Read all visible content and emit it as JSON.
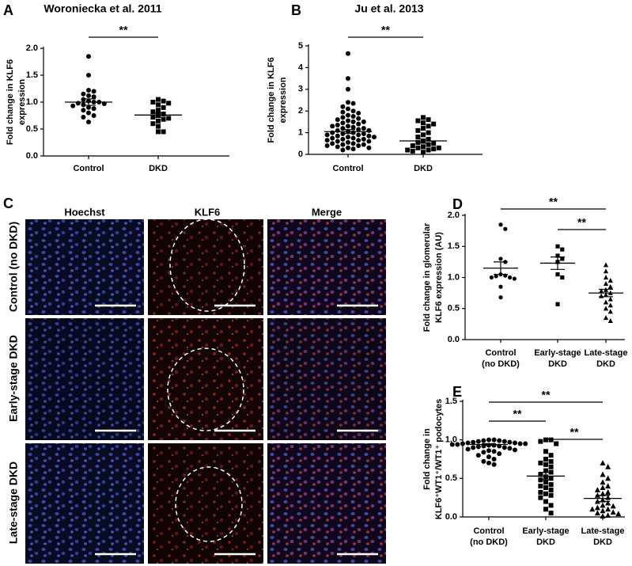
{
  "chart_data": [
    {
      "type": "strip",
      "panel": "A",
      "title": "Woroniecka et al. 2011",
      "y_label": [
        "Fold change in KLF6",
        "expression"
      ],
      "categories": [
        "Control",
        "DKD"
      ],
      "color": "#000000",
      "ylim": [
        0,
        2
      ],
      "yticks": [
        {
          "value": 0,
          "label": "0.0"
        },
        {
          "value": 0.5,
          "label": "0.5"
        },
        {
          "value": 1,
          "label": "1.0"
        },
        {
          "value": 1.5,
          "label": "1.5"
        },
        {
          "value": 2,
          "label": "2.0"
        }
      ],
      "groups": [
        {
          "marker": "circle",
          "mean": 1.0,
          "sem": 0.06,
          "values": [
            1.85,
            1.5,
            1.22,
            1.2,
            1.15,
            1.12,
            1.1,
            1.05,
            1.02,
            1.0,
            1.0,
            0.98,
            0.97,
            0.95,
            0.93,
            0.9,
            0.88,
            0.85,
            0.8,
            0.75,
            0.72,
            0.63
          ]
        },
        {
          "marker": "square",
          "mean": 0.76,
          "sem": 0.04,
          "values": [
            1.05,
            1.02,
            1.0,
            0.98,
            0.95,
            0.9,
            0.85,
            0.82,
            0.78,
            0.75,
            0.72,
            0.7,
            0.68,
            0.65,
            0.6,
            0.55,
            0.45,
            0.45
          ]
        }
      ],
      "annotations": [
        {
          "text": "**",
          "between": [
            "Control",
            "DKD"
          ]
        }
      ]
    },
    {
      "type": "strip",
      "panel": "B",
      "title": "Ju et al. 2013",
      "y_label": [
        "Fold change in KLF6",
        "expression"
      ],
      "categories": [
        "Control",
        "DKD"
      ],
      "color": "#000000",
      "ylim": [
        0,
        5
      ],
      "yticks": [
        0,
        1,
        2,
        3,
        4,
        5
      ],
      "groups": [
        {
          "marker": "circle",
          "mean": 1.05,
          "sem": 0.09,
          "values": [
            4.65,
            3.5,
            3.0,
            2.4,
            2.35,
            2.2,
            2.1,
            2.0,
            1.95,
            1.9,
            1.8,
            1.75,
            1.7,
            1.65,
            1.6,
            1.55,
            1.5,
            1.5,
            1.45,
            1.4,
            1.35,
            1.3,
            1.3,
            1.25,
            1.2,
            1.2,
            1.15,
            1.1,
            1.1,
            1.05,
            1.0,
            1.0,
            0.95,
            0.95,
            0.9,
            0.9,
            0.85,
            0.85,
            0.8,
            0.8,
            0.75,
            0.75,
            0.7,
            0.7,
            0.65,
            0.65,
            0.6,
            0.6,
            0.55,
            0.5,
            0.5,
            0.45,
            0.45,
            0.4,
            0.4,
            0.35,
            0.3,
            0.3,
            0.25,
            0.2
          ]
        },
        {
          "marker": "square",
          "mean": 0.62,
          "sem": 0.09,
          "values": [
            1.7,
            1.6,
            1.55,
            1.45,
            1.4,
            1.3,
            1.2,
            1.1,
            1.0,
            0.9,
            0.8,
            0.7,
            0.6,
            0.55,
            0.5,
            0.45,
            0.4,
            0.35,
            0.3,
            0.3,
            0.25,
            0.2,
            0.2,
            0.15,
            0.1
          ]
        }
      ],
      "annotations": [
        {
          "text": "**",
          "between": [
            "Control",
            "DKD"
          ]
        }
      ]
    },
    {
      "type": "strip",
      "panel": "D",
      "y_label": [
        "Fold change in glomerular",
        "KLF6 expression (AU)"
      ],
      "categories": [
        [
          "Control",
          "(no DKD)"
        ],
        [
          "Early-stage",
          "DKD"
        ],
        [
          "Late-stage",
          "DKD"
        ]
      ],
      "color": "#000000",
      "ylim": [
        0,
        2
      ],
      "yticks": [
        {
          "value": 0,
          "label": "0.0"
        },
        {
          "value": 0.5,
          "label": "0.5"
        },
        {
          "value": 1,
          "label": "1.0"
        },
        {
          "value": 1.5,
          "label": "1.5"
        },
        {
          "value": 2,
          "label": "2.0"
        }
      ],
      "groups": [
        {
          "marker": "circle",
          "mean": 1.15,
          "sem": 0.1,
          "values": [
            1.85,
            1.78,
            1.3,
            1.25,
            1.05,
            1.03,
            1.02,
            1.0,
            1.0,
            0.98,
            0.85,
            0.68
          ]
        },
        {
          "marker": "square",
          "mean": 1.23,
          "sem": 0.1,
          "values": [
            1.5,
            1.45,
            1.35,
            1.3,
            1.25,
            1.05,
            1.0,
            0.57
          ]
        },
        {
          "marker": "triangle",
          "mean": 0.75,
          "sem": 0.06,
          "values": [
            1.2,
            1.1,
            1.0,
            0.95,
            0.9,
            0.85,
            0.8,
            0.78,
            0.75,
            0.72,
            0.7,
            0.65,
            0.6,
            0.55,
            0.5,
            0.45,
            0.35,
            0.3
          ]
        }
      ],
      "annotations": [
        {
          "text": "**",
          "between": [
            [
              "Control",
              "(no DKD)"
            ],
            [
              "Late-stage",
              "DKD"
            ]
          ]
        },
        {
          "text": "**",
          "between": [
            [
              "Early-stage",
              "DKD"
            ],
            [
              "Late-stage",
              "DKD"
            ]
          ]
        }
      ]
    },
    {
      "type": "strip",
      "panel": "E",
      "y_label": [
        "Fold change in",
        "KLF6⁺WT1⁺/WT1⁺ podocytes"
      ],
      "categories": [
        [
          "Control",
          "(no DKD)"
        ],
        [
          "Early-stage",
          "DKD"
        ],
        [
          "Late-stage",
          "DKD"
        ]
      ],
      "color": "#000000",
      "ylim": [
        0,
        1.5
      ],
      "yticks": [
        {
          "value": 0,
          "label": "0.0"
        },
        {
          "value": 0.5,
          "label": "0.5"
        },
        {
          "value": 1,
          "label": "1.0"
        },
        {
          "value": 1.5,
          "label": "1.5"
        }
      ],
      "groups": [
        {
          "marker": "circle",
          "mean": 0.94,
          "sem": 0.01,
          "values": [
            1.0,
            1.0,
            0.99,
            0.99,
            0.98,
            0.98,
            0.97,
            0.97,
            0.96,
            0.96,
            0.95,
            0.95,
            0.95,
            0.94,
            0.94,
            0.93,
            0.93,
            0.92,
            0.92,
            0.91,
            0.9,
            0.9,
            0.89,
            0.88,
            0.87,
            0.86,
            0.85,
            0.84,
            0.82,
            0.8,
            0.78,
            0.75,
            0.72,
            0.7,
            0.68
          ]
        },
        {
          "marker": "square",
          "mean": 0.53,
          "sem": 0.05,
          "values": [
            1.0,
            1.0,
            0.98,
            0.95,
            0.85,
            0.8,
            0.75,
            0.72,
            0.7,
            0.68,
            0.65,
            0.6,
            0.58,
            0.55,
            0.52,
            0.5,
            0.48,
            0.45,
            0.42,
            0.4,
            0.38,
            0.35,
            0.32,
            0.3,
            0.28,
            0.25,
            0.2,
            0.15,
            0.1,
            0.05
          ]
        },
        {
          "marker": "triangle",
          "mean": 0.24,
          "sem": 0.04,
          "values": [
            0.7,
            0.65,
            0.55,
            0.5,
            0.45,
            0.4,
            0.38,
            0.35,
            0.32,
            0.3,
            0.28,
            0.25,
            0.22,
            0.2,
            0.18,
            0.15,
            0.14,
            0.12,
            0.1,
            0.1,
            0.08,
            0.06,
            0.05,
            0.04,
            0.02,
            0.01
          ]
        }
      ],
      "annotations": [
        {
          "text": "**",
          "between": [
            [
              "Control",
              "(no DKD)"
            ],
            [
              "Late-stage",
              "DKD"
            ]
          ]
        },
        {
          "text": "**",
          "between": [
            [
              "Control",
              "(no DKD)"
            ],
            [
              "Early-stage",
              "DKD"
            ]
          ]
        },
        {
          "text": "**",
          "between": [
            [
              "Early-stage",
              "DKD"
            ],
            [
              "Late-stage",
              "DKD"
            ]
          ]
        }
      ]
    }
  ],
  "panel_c": {
    "panel": "C",
    "columns": [
      "Hoechst",
      "KLF6",
      "Merge"
    ],
    "rows": [
      "Control (no DKD)",
      "Early-stage DKD",
      "Late-stage DKD"
    ]
  }
}
